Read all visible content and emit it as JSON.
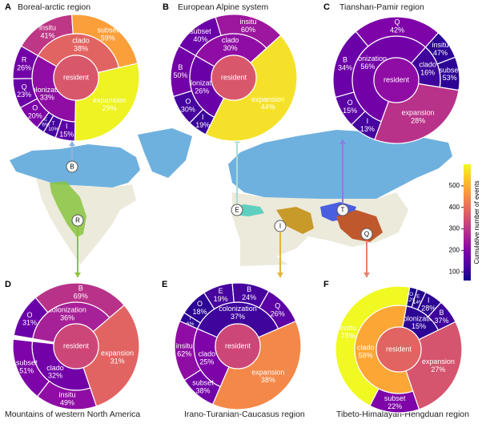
{
  "chart_data": [
    {
      "type": "sunburst",
      "panel": "A",
      "title": "Boreal-arctic region",
      "center": "resident",
      "center_color": "#d8576b",
      "segments": [
        {
          "name": "clado",
          "value": 38,
          "value_label": "38%",
          "color": "#e16462",
          "children": [
            {
              "name": "insitu",
              "value": 41,
              "value_label": "41%",
              "color": "#bd3786"
            },
            {
              "name": "subset",
              "value": 59,
              "value_label": "59%",
              "color": "#fb9f3a"
            }
          ]
        },
        {
          "name": "expansion",
          "value": 29,
          "value_label": "29%",
          "color": "#eef321",
          "children": []
        },
        {
          "name": "colonization",
          "value": 33,
          "value_label": "33%",
          "color": "#8f0da4",
          "children": [
            {
              "name": "I",
              "value": 15,
              "value_label": "15%",
              "color": "#5c01a6"
            },
            {
              "name": "T",
              "value": 10,
              "value_label": "10%",
              "color": "#46039f"
            },
            {
              "name": "E",
              "value": 6,
              "value_label": "6%",
              "color": "#3a049a"
            },
            {
              "name": "O",
              "value": 20,
              "value_label": "20%",
              "color": "#7e03a8"
            },
            {
              "name": "Q",
              "value": 23,
              "value_label": "23%",
              "color": "#6a00a8"
            },
            {
              "name": "R",
              "value": 26,
              "value_label": "26%",
              "color": "#7201a8"
            }
          ]
        }
      ]
    },
    {
      "type": "sunburst",
      "panel": "B",
      "title": "European Alpine system",
      "center": "resident",
      "center_color": "#d8576b",
      "segments": [
        {
          "name": "clado",
          "value": 30,
          "value_label": "30%",
          "color": "#8f0da4",
          "children": [
            {
              "name": "subset",
              "value": 40,
              "value_label": "40%",
              "color": "#6a00a8"
            },
            {
              "name": "insitu",
              "value": 60,
              "value_label": "60%",
              "color": "#9c179e"
            }
          ]
        },
        {
          "name": "expansion",
          "value": 44,
          "value_label": "44%",
          "color": "#f5e12a",
          "children": []
        },
        {
          "name": "colonization",
          "value": 26,
          "value_label": "26%",
          "color": "#6a00a8",
          "children": [
            {
              "name": "I",
              "value": 19,
              "value_label": "19%",
              "color": "#3a049a"
            },
            {
              "name": "O",
              "value": 30,
              "value_label": "30%",
              "color": "#46039f"
            },
            {
              "name": "B",
              "value": 50,
              "value_label": "50%",
              "color": "#7201a8"
            }
          ]
        }
      ]
    },
    {
      "type": "sunburst",
      "panel": "C",
      "title": "Tianshan-Pamir region",
      "center": "resident",
      "center_color": "#8f0da4",
      "segments": [
        {
          "name": "colonization",
          "value": 56,
          "value_label": "56%",
          "color": "#7201a8",
          "children": [
            {
              "name": "I",
              "value": 13,
              "value_label": "13%",
              "color": "#46039f"
            },
            {
              "name": "O",
              "value": 15,
              "value_label": "15%",
              "color": "#5c01a6"
            },
            {
              "name": "B",
              "value": 34,
              "value_label": "34%",
              "color": "#6a00a8"
            },
            {
              "name": "Q",
              "value": 42,
              "value_label": "42%",
              "color": "#7e03a8"
            }
          ]
        },
        {
          "name": "clado",
          "value": 16,
          "value_label": "16%",
          "color": "#3e049c",
          "children": [
            {
              "name": "insitu",
              "value": 47,
              "value_label": "47%",
              "color": "#2c0594"
            },
            {
              "name": "subset",
              "value": 53,
              "value_label": "53%",
              "color": "#2c0594"
            }
          ]
        },
        {
          "name": "expansion",
          "value": 28,
          "value_label": "28%",
          "color": "#b83289",
          "children": []
        }
      ]
    },
    {
      "type": "sunburst",
      "panel": "D",
      "title": "Mountains of western North America",
      "center": "resident",
      "center_color": "#cc4778",
      "segments": [
        {
          "name": "colonization",
          "value": 36,
          "value_label": "36%",
          "color": "#a62098",
          "children": [
            {
              "name": "O",
              "value": 31,
              "value_label": "31%",
              "color": "#6a00a8"
            },
            {
              "name": "B",
              "value": 69,
              "value_label": "69%",
              "color": "#b83289"
            }
          ]
        },
        {
          "name": "expansion",
          "value": 31,
          "value_label": "31%",
          "color": "#e16462",
          "children": []
        },
        {
          "name": "clado",
          "value": 32,
          "value_label": "32%",
          "color": "#7201a8",
          "children": [
            {
              "name": "insitu",
              "value": 49,
              "value_label": "49%",
              "color": "#8f0da4"
            },
            {
              "name": "subset",
              "value": 51,
              "value_label": "51%",
              "color": "#7e03a8"
            }
          ]
        }
      ]
    },
    {
      "type": "sunburst",
      "panel": "E",
      "title": "Irano-Turanian-Caucasus region",
      "center": "resident",
      "center_color": "#cc4778",
      "segments": [
        {
          "name": "colonization",
          "value": 37,
          "value_label": "37%",
          "color": "#3e049c",
          "children": [
            {
              "name": "T",
              "value": 6,
              "value_label": "6%",
              "color": "#2c0594"
            },
            {
              "name": "O",
              "value": 18,
              "value_label": "18%",
              "color": "#2c0594"
            },
            {
              "name": "E",
              "value": 19,
              "value_label": "19%",
              "color": "#46039f"
            },
            {
              "name": "B",
              "value": 24,
              "value_label": "24%",
              "color": "#46039f"
            },
            {
              "name": "Q",
              "value": 26,
              "value_label": "26%",
              "color": "#5c01a6"
            }
          ]
        },
        {
          "name": "expansion",
          "value": 38,
          "value_label": "38%",
          "color": "#f48849",
          "children": []
        },
        {
          "name": "clado",
          "value": 25,
          "value_label": "25%",
          "color": "#7e03a8",
          "children": [
            {
              "name": "subset",
              "value": 38,
              "value_label": "38%",
              "color": "#7201a8"
            },
            {
              "name": "insitu",
              "value": 62,
              "value_label": "62%",
              "color": "#8f0da4"
            }
          ]
        }
      ]
    },
    {
      "type": "sunburst",
      "panel": "F",
      "title": "Tibeto-Himalayan-Hengduan region",
      "center": "resident",
      "center_color": "#e16462",
      "segments": [
        {
          "name": "colonization",
          "value": 15,
          "value_label": "15%",
          "color": "#2c0594",
          "children": [
            {
              "name": "O",
              "value": 12,
              "value_label": "12%",
              "color": "#1b068d"
            },
            {
              "name": "E",
              "value": 14,
              "value_label": "14%",
              "color": "#24068f"
            },
            {
              "name": "I",
              "value": 28,
              "value_label": "28%",
              "color": "#2c0594"
            },
            {
              "name": "B",
              "value": 37,
              "value_label": "37%",
              "color": "#3e049c"
            }
          ]
        },
        {
          "name": "expansion",
          "value": 27,
          "value_label": "27%",
          "color": "#d5546e",
          "children": []
        },
        {
          "name": "clado",
          "value": 58,
          "value_label": "58%",
          "color": "#fca636",
          "children": [
            {
              "name": "subset",
              "value": 22,
              "value_label": "22%",
              "color": "#7e03a8"
            },
            {
              "name": "insitu",
              "value": 78,
              "value_label": "78%",
              "color": "#f0f921"
            }
          ]
        }
      ]
    }
  ],
  "colorbar": {
    "label": "Cumulative number of events",
    "lim": [
      60,
      600
    ],
    "ticks": [
      100,
      200,
      300,
      400,
      500
    ],
    "colors": [
      "#0d0887",
      "#46039f",
      "#7201a8",
      "#9c179e",
      "#bd3786",
      "#d8576b",
      "#ed7953",
      "#fb9f3a",
      "#fdca26",
      "#f0f921"
    ]
  },
  "map": {
    "markers": [
      {
        "label": "B",
        "color": "#8fb3e0"
      },
      {
        "label": "R",
        "color": "#8ac43f"
      },
      {
        "label": "E",
        "color": "#a9ddd8"
      },
      {
        "label": "I",
        "color": "#e0b43a"
      },
      {
        "label": "T",
        "color": "#8a7de8"
      },
      {
        "label": "Q",
        "color": "#e8826a"
      }
    ]
  }
}
